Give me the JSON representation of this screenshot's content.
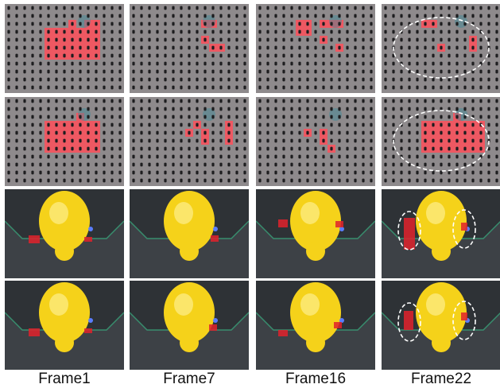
{
  "figure": {
    "columns": [
      "Frame1",
      "Frame7",
      "Frame16",
      "Frame22"
    ],
    "colors": {
      "board": "#8e8a8c",
      "hole": "#1d1d1f",
      "highlight": "#ff4f5a",
      "gripper_dark": "#2e3236",
      "gripper_floor": "#3d4146",
      "object_yellow": "#f5d21a",
      "marker_red": "#e0222b",
      "annotation_ellipse": "#ffffff"
    }
  }
}
